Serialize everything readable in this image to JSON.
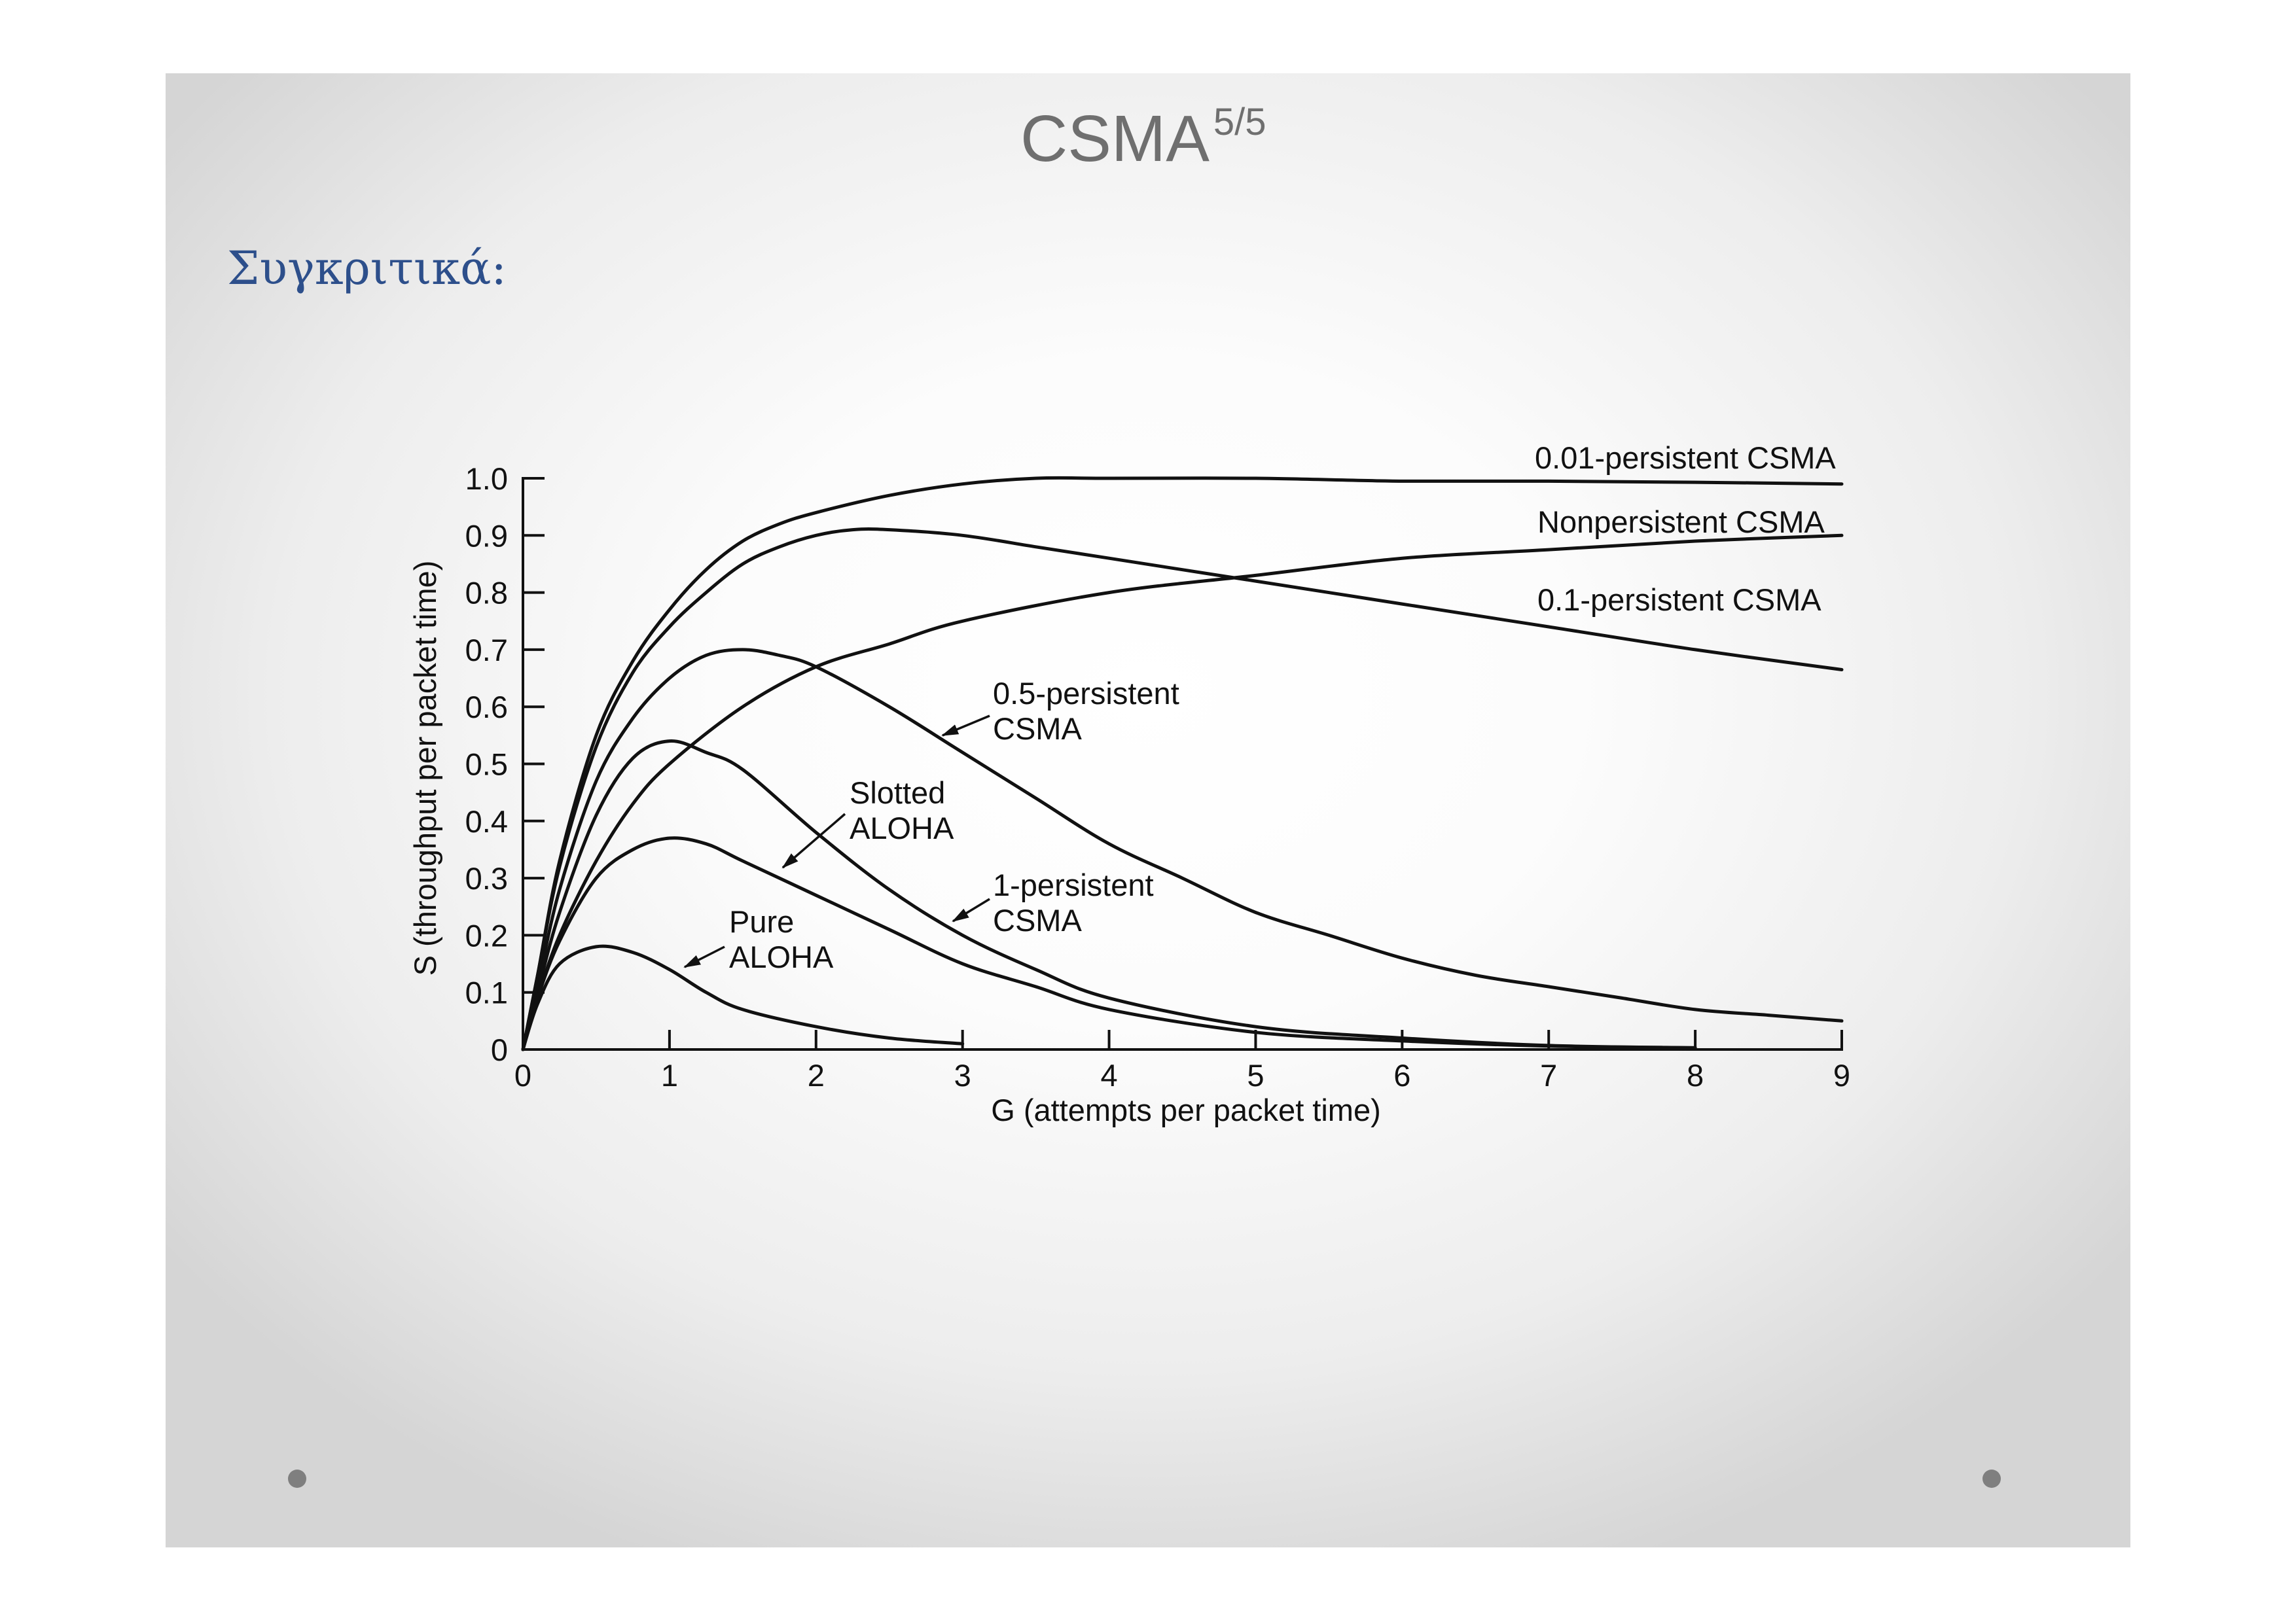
{
  "slide": {
    "title": "CSMA",
    "title_superscript": "5/5",
    "subtitle": "Συγκριτικά:"
  },
  "colors": {
    "title": "#6f6f6f",
    "subtitle": "#2d4f8b",
    "ink": "#111111",
    "bullet": "#7f7f7f"
  },
  "chart_data": {
    "type": "line",
    "title": "",
    "xlabel": "G (attempts per packet time)",
    "ylabel": "S (throughput per packet time)",
    "xlim": [
      0,
      9
    ],
    "ylim": [
      0,
      1.0
    ],
    "x_ticks": [
      0,
      1,
      2,
      3,
      4,
      5,
      6,
      7,
      8,
      9
    ],
    "x_tick_labels": [
      "0",
      "1",
      "2",
      "3",
      "4",
      "5",
      "6",
      "7",
      "8",
      "9"
    ],
    "y_ticks": [
      0,
      0.1,
      0.2,
      0.3,
      0.4,
      0.5,
      0.6,
      0.7,
      0.8,
      0.9,
      1.0
    ],
    "y_tick_labels": [
      "0",
      "0.1",
      "0.2",
      "0.3",
      "0.4",
      "0.5",
      "0.6",
      "0.7",
      "0.8",
      "0.9",
      "1.0"
    ],
    "grid": false,
    "legend": "none (curves labeled directly)",
    "series": [
      {
        "name": "Pure ALOHA",
        "x": [
          0,
          0.1,
          0.25,
          0.5,
          0.75,
          1,
          1.25,
          1.5,
          2,
          2.5,
          3
        ],
        "y": [
          0,
          0.08,
          0.15,
          0.18,
          0.17,
          0.14,
          0.1,
          0.07,
          0.04,
          0.02,
          0.01
        ]
      },
      {
        "name": "Slotted ALOHA",
        "x": [
          0,
          0.1,
          0.25,
          0.5,
          0.75,
          1,
          1.25,
          1.5,
          2,
          2.5,
          3,
          3.5,
          4,
          5,
          6,
          7,
          8
        ],
        "y": [
          0,
          0.09,
          0.19,
          0.3,
          0.35,
          0.37,
          0.36,
          0.33,
          0.27,
          0.21,
          0.15,
          0.11,
          0.07,
          0.03,
          0.015,
          0.006,
          0.003
        ]
      },
      {
        "name": "1-persistent CSMA",
        "x": [
          0,
          0.1,
          0.25,
          0.5,
          0.75,
          1,
          1.25,
          1.5,
          2,
          2.5,
          3,
          3.5,
          4,
          5,
          6,
          7,
          8
        ],
        "y": [
          0,
          0.1,
          0.24,
          0.41,
          0.51,
          0.54,
          0.52,
          0.49,
          0.38,
          0.28,
          0.2,
          0.14,
          0.09,
          0.04,
          0.02,
          0.007,
          0.003
        ]
      },
      {
        "name": "0.5-persistent CSMA",
        "x": [
          0,
          0.1,
          0.25,
          0.5,
          0.75,
          1,
          1.25,
          1.5,
          1.75,
          2,
          2.5,
          3,
          3.5,
          4,
          4.5,
          5,
          5.5,
          6,
          6.5,
          7,
          7.5,
          8,
          8.5,
          9
        ],
        "y": [
          0,
          0.11,
          0.28,
          0.47,
          0.58,
          0.65,
          0.69,
          0.7,
          0.69,
          0.67,
          0.6,
          0.52,
          0.44,
          0.36,
          0.3,
          0.24,
          0.2,
          0.16,
          0.13,
          0.11,
          0.09,
          0.07,
          0.06,
          0.05
        ]
      },
      {
        "name": "0.1-persistent CSMA",
        "x": [
          0,
          0.1,
          0.25,
          0.5,
          0.75,
          1,
          1.25,
          1.5,
          1.75,
          2,
          2.25,
          2.5,
          3,
          3.5,
          4,
          4.5,
          5,
          6,
          7,
          8,
          9
        ],
        "y": [
          0,
          0.13,
          0.32,
          0.53,
          0.66,
          0.74,
          0.8,
          0.85,
          0.88,
          0.9,
          0.91,
          0.91,
          0.9,
          0.88,
          0.86,
          0.84,
          0.82,
          0.78,
          0.74,
          0.7,
          0.665
        ]
      },
      {
        "name": "Nonpersistent CSMA",
        "x": [
          0,
          0.1,
          0.25,
          0.5,
          0.75,
          1,
          1.5,
          2,
          2.5,
          3,
          4,
          5,
          6,
          7,
          8,
          9
        ],
        "y": [
          0,
          0.09,
          0.2,
          0.33,
          0.43,
          0.5,
          0.6,
          0.67,
          0.71,
          0.75,
          0.8,
          0.83,
          0.86,
          0.875,
          0.89,
          0.9
        ]
      },
      {
        "name": "0.01-persistent CSMA",
        "x": [
          0,
          0.1,
          0.25,
          0.5,
          0.75,
          1,
          1.25,
          1.5,
          1.75,
          2,
          2.5,
          3,
          3.5,
          4,
          5,
          6,
          7,
          8,
          9
        ],
        "y": [
          0,
          0.13,
          0.33,
          0.55,
          0.68,
          0.77,
          0.84,
          0.89,
          0.92,
          0.94,
          0.97,
          0.99,
          1.0,
          1.0,
          1.0,
          0.995,
          0.995,
          0.993,
          0.99
        ]
      }
    ]
  }
}
